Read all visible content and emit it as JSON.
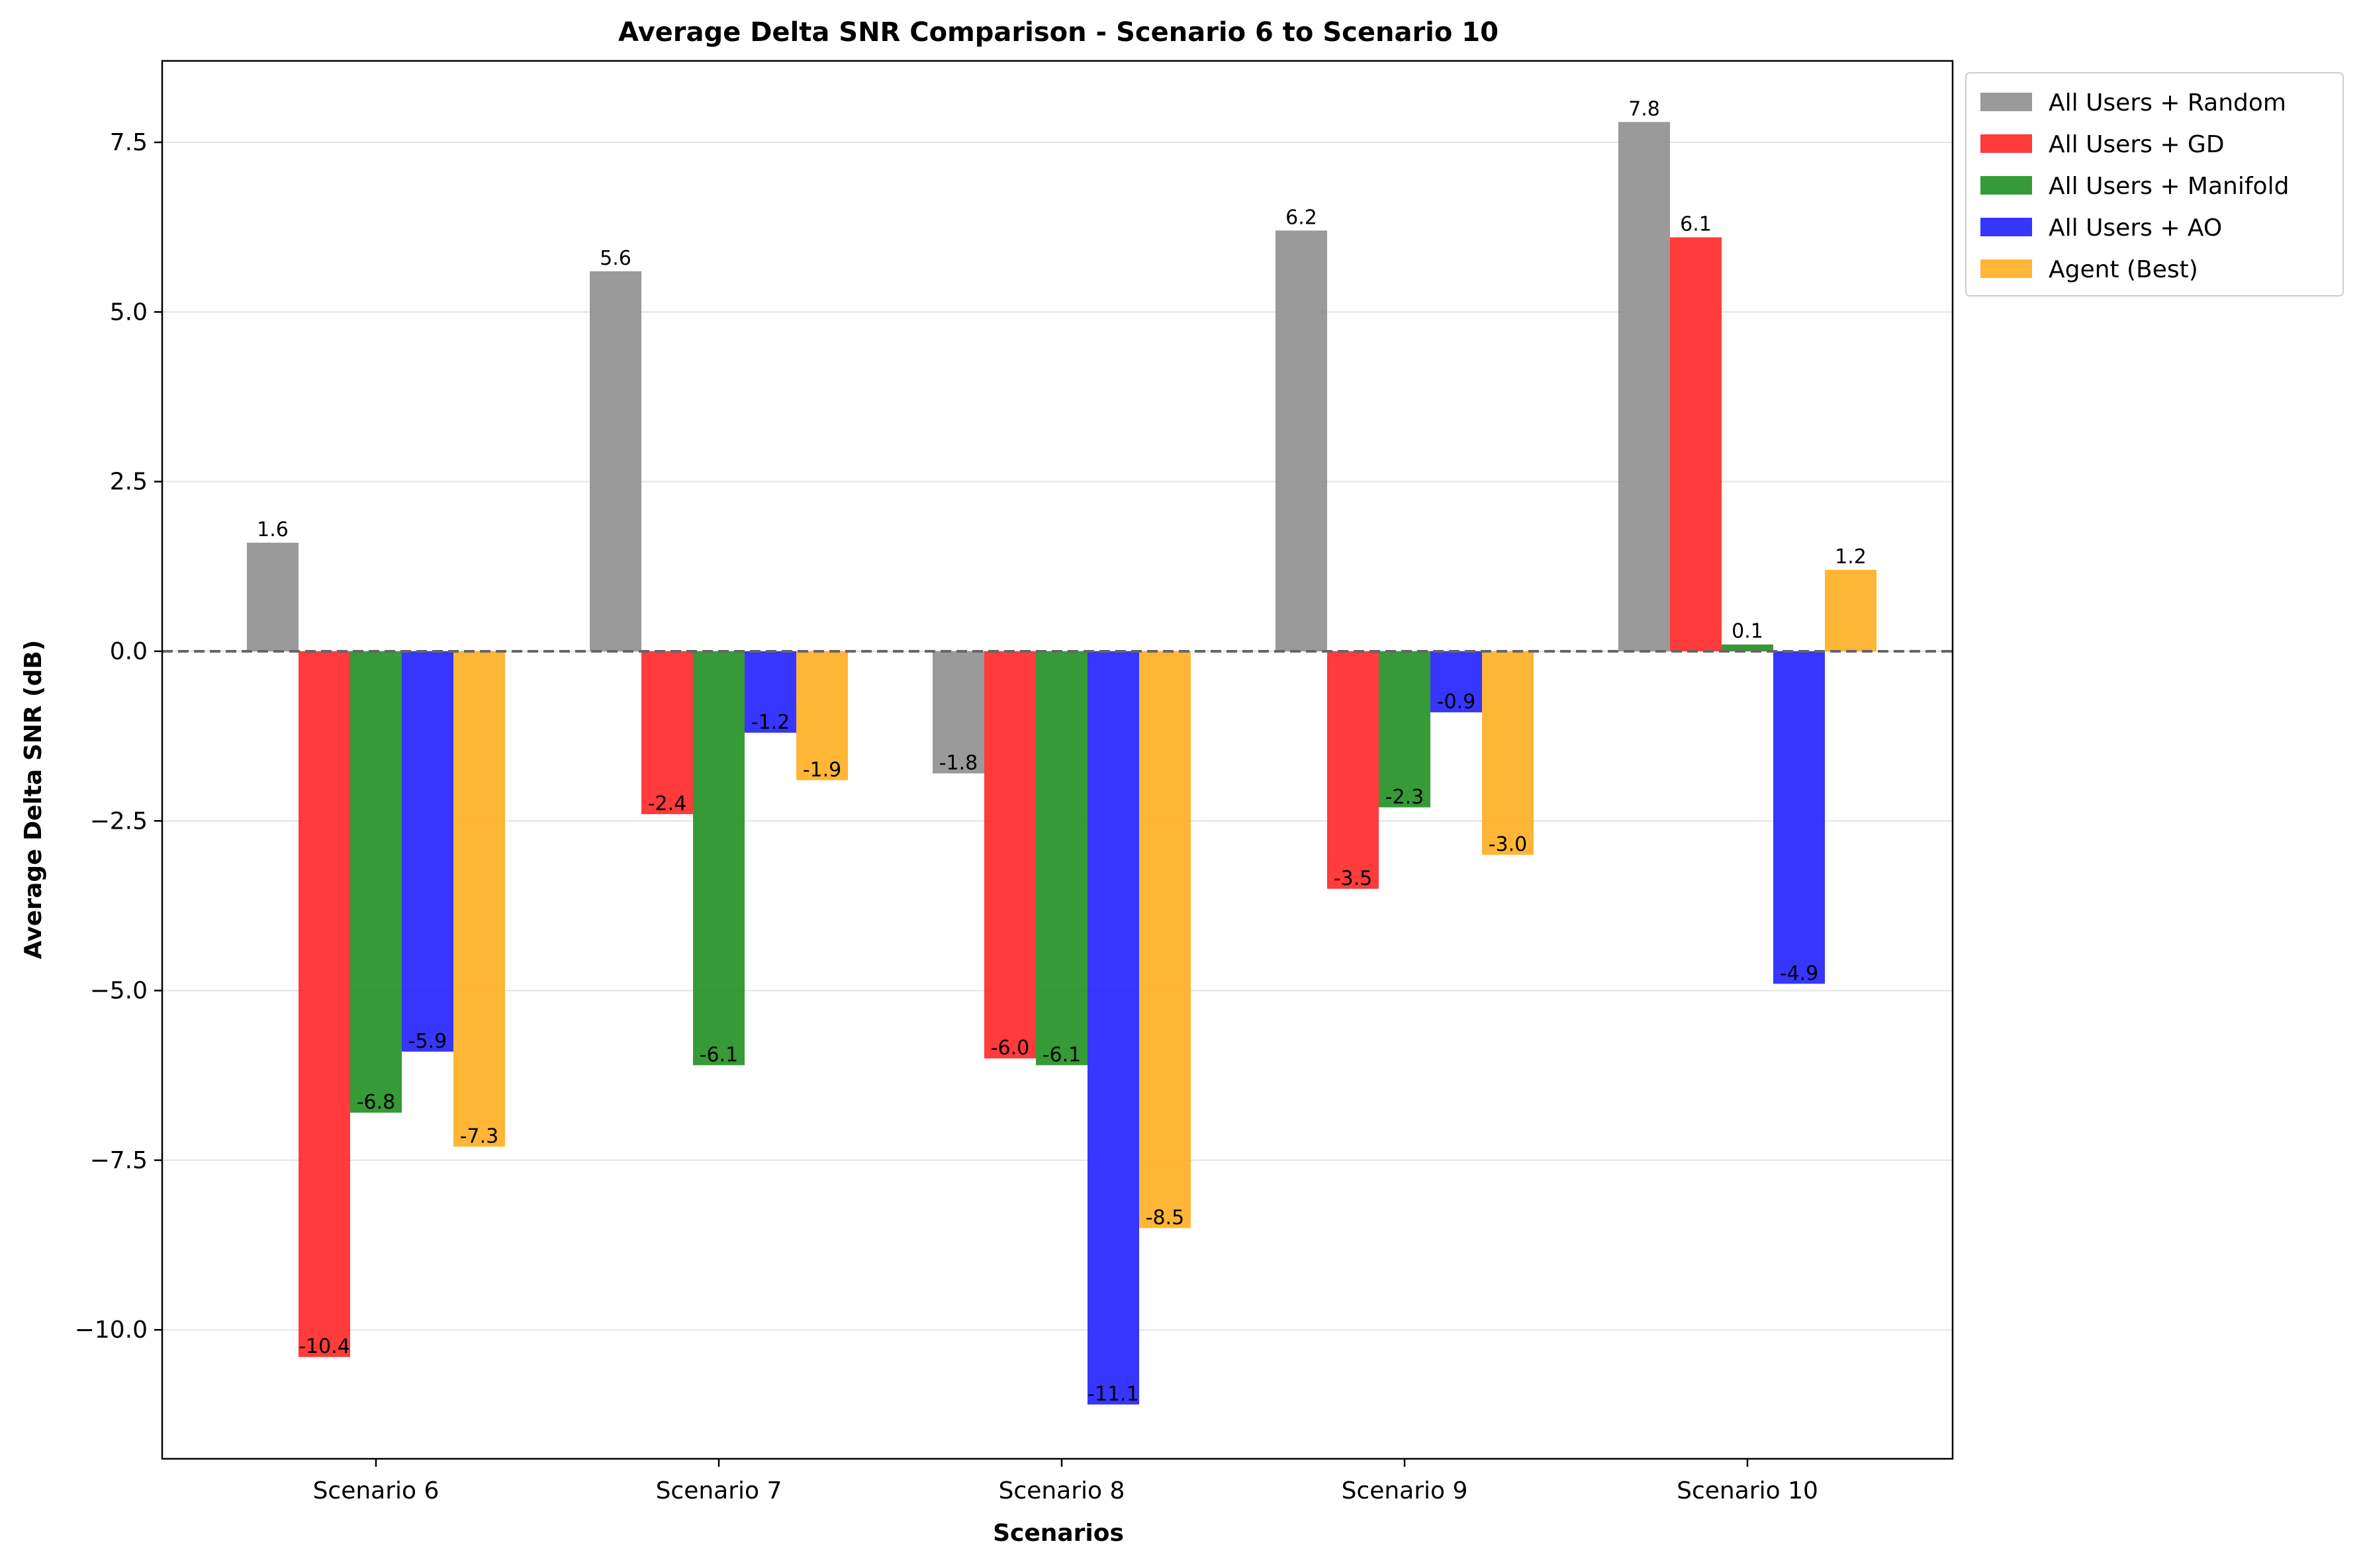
{
  "chart_data": {
    "type": "bar",
    "title": "Average Delta SNR Comparison - Scenario 6 to Scenario 10",
    "xlabel": "Scenarios",
    "ylabel": "Average Delta SNR (dB)",
    "ylim": [
      -11.9,
      8.7
    ],
    "yticks": [
      7.5,
      5.0,
      2.5,
      0.0,
      -2.5,
      -5.0,
      -7.5,
      -10.0
    ],
    "ytick_labels": [
      "7.5",
      "5.0",
      "2.5",
      "0.0",
      "−2.5",
      "−5.0",
      "−7.5",
      "−10.0"
    ],
    "categories": [
      "Scenario 6",
      "Scenario 7",
      "Scenario 8",
      "Scenario 9",
      "Scenario 10"
    ],
    "grid": "horizontal",
    "zero_line": "dashed",
    "legend_position": "outside top-right",
    "series": [
      {
        "name": "All Users + Random",
        "color": "#8c8c8c",
        "values": [
          1.6,
          5.6,
          -1.8,
          6.2,
          7.8
        ],
        "labels": [
          "1.6",
          "5.6",
          "-1.8",
          "6.2",
          "7.8"
        ]
      },
      {
        "name": "All Users + GD",
        "color": "#ff2020",
        "values": [
          -10.4,
          -2.4,
          -6.0,
          -3.5,
          6.1
        ],
        "labels": [
          "-10.4",
          "-2.4",
          "-6.0",
          "-3.5",
          "6.1"
        ]
      },
      {
        "name": "All Users + Manifold",
        "color": "#1a8c1a",
        "values": [
          -6.8,
          -6.1,
          -6.1,
          -2.3,
          0.1
        ],
        "labels": [
          "-6.8",
          "-6.1",
          "-6.1",
          "-2.3",
          "0.1"
        ]
      },
      {
        "name": "All Users + AO",
        "color": "#1a1aff",
        "values": [
          -5.9,
          -1.2,
          -11.1,
          -0.9,
          -4.9
        ],
        "labels": [
          "-5.9",
          "-1.2",
          "-11.1",
          "-0.9",
          "-4.9"
        ]
      },
      {
        "name": "Agent (Best)",
        "color": "#ffac1a",
        "values": [
          -7.3,
          -1.9,
          -8.5,
          -3.0,
          1.2
        ],
        "labels": [
          "-7.3",
          "-1.9",
          "-8.5",
          "-3.0",
          "1.2"
        ]
      }
    ]
  }
}
